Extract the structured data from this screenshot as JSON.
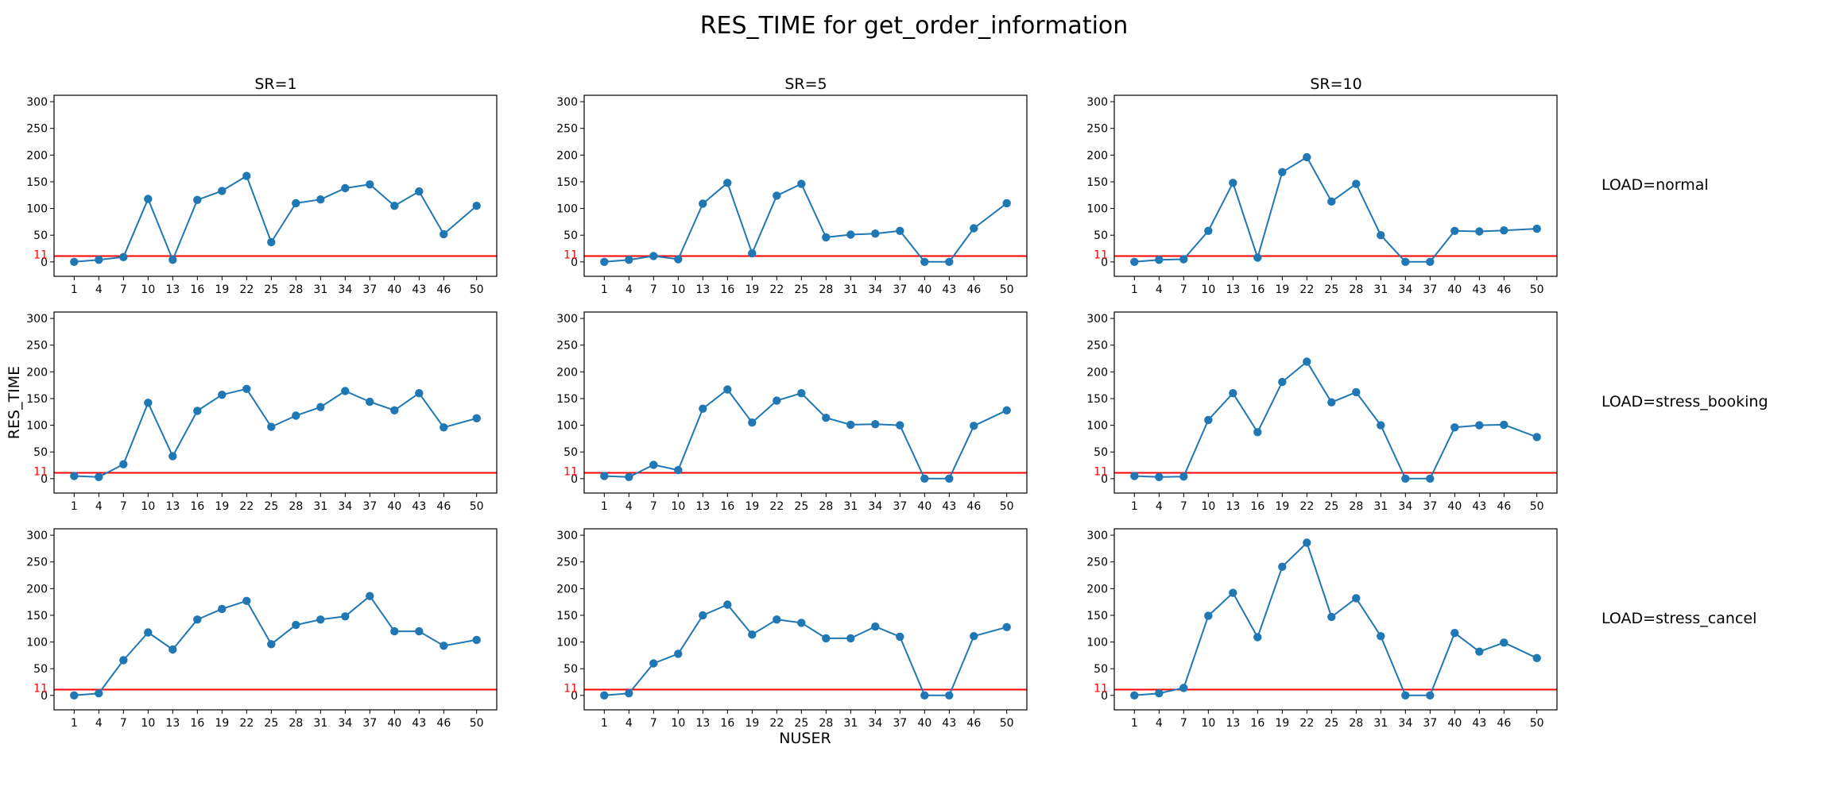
{
  "title": "RES_TIME for get_order_information",
  "xlabel": "NUSER",
  "ylabel": "RES_TIME",
  "col_titles": [
    "SR=1",
    "SR=5",
    "SR=10"
  ],
  "row_titles": [
    "LOAD=normal",
    "LOAD=stress_booking",
    "LOAD=stress_cancel"
  ],
  "threshold": {
    "value": 11,
    "label": "11",
    "color": "#ff0000"
  },
  "series_color": "#1f77b4",
  "chart_data": [
    {
      "type": "line",
      "row": "LOAD=normal",
      "col": "SR=1",
      "x": [
        1,
        4,
        7,
        10,
        13,
        16,
        19,
        22,
        25,
        28,
        31,
        34,
        37,
        40,
        43,
        46,
        50
      ],
      "y": [
        0,
        4,
        9,
        118,
        4,
        116,
        133,
        161,
        37,
        110,
        117,
        138,
        145,
        105,
        132,
        52,
        105
      ],
      "xticks": [
        1,
        4,
        7,
        10,
        13,
        16,
        19,
        22,
        25,
        28,
        31,
        34,
        37,
        40,
        43,
        46,
        50
      ],
      "yticks": [
        0,
        50,
        100,
        150,
        200,
        250,
        300
      ],
      "xlim": [
        -1.45,
        52.45
      ],
      "ylim": [
        -27,
        312
      ],
      "grid": false
    },
    {
      "type": "line",
      "row": "LOAD=normal",
      "col": "SR=5",
      "x": [
        1,
        4,
        7,
        10,
        13,
        16,
        19,
        22,
        25,
        28,
        31,
        34,
        37,
        40,
        43,
        46,
        50
      ],
      "y": [
        0,
        4,
        11,
        5,
        109,
        148,
        16,
        124,
        146,
        46,
        51,
        53,
        58,
        0,
        0,
        63,
        110
      ],
      "xticks": [
        1,
        4,
        7,
        10,
        13,
        16,
        19,
        22,
        25,
        28,
        31,
        34,
        37,
        40,
        43,
        46,
        50
      ],
      "yticks": [
        0,
        50,
        100,
        150,
        200,
        250,
        300
      ],
      "xlim": [
        -1.45,
        52.45
      ],
      "ylim": [
        -27,
        312
      ],
      "grid": false
    },
    {
      "type": "line",
      "row": "LOAD=normal",
      "col": "SR=10",
      "x": [
        1,
        4,
        7,
        10,
        13,
        16,
        19,
        22,
        25,
        28,
        31,
        34,
        37,
        40,
        43,
        46,
        50
      ],
      "y": [
        0,
        4,
        5,
        58,
        148,
        8,
        168,
        196,
        113,
        146,
        50,
        0,
        0,
        58,
        57,
        59,
        62
      ],
      "xticks": [
        1,
        4,
        7,
        10,
        13,
        16,
        19,
        22,
        25,
        28,
        31,
        34,
        37,
        40,
        43,
        46,
        50
      ],
      "yticks": [
        0,
        50,
        100,
        150,
        200,
        250,
        300
      ],
      "xlim": [
        -1.45,
        52.45
      ],
      "ylim": [
        -27,
        312
      ],
      "grid": false
    },
    {
      "type": "line",
      "row": "LOAD=stress_booking",
      "col": "SR=1",
      "x": [
        1,
        4,
        7,
        10,
        13,
        16,
        19,
        22,
        25,
        28,
        31,
        34,
        37,
        40,
        43,
        46,
        50
      ],
      "y": [
        5,
        3,
        27,
        142,
        42,
        127,
        157,
        168,
        97,
        118,
        134,
        164,
        144,
        128,
        160,
        96,
        113
      ],
      "xticks": [
        1,
        4,
        7,
        10,
        13,
        16,
        19,
        22,
        25,
        28,
        31,
        34,
        37,
        40,
        43,
        46,
        50
      ],
      "yticks": [
        0,
        50,
        100,
        150,
        200,
        250,
        300
      ],
      "xlim": [
        -1.45,
        52.45
      ],
      "ylim": [
        -27,
        312
      ],
      "grid": false
    },
    {
      "type": "line",
      "row": "LOAD=stress_booking",
      "col": "SR=5",
      "x": [
        1,
        4,
        7,
        10,
        13,
        16,
        19,
        22,
        25,
        28,
        31,
        34,
        37,
        40,
        43,
        46,
        50
      ],
      "y": [
        5,
        3,
        26,
        16,
        131,
        167,
        105,
        146,
        160,
        114,
        101,
        102,
        100,
        0,
        0,
        99,
        128
      ],
      "xticks": [
        1,
        4,
        7,
        10,
        13,
        16,
        19,
        22,
        25,
        28,
        31,
        34,
        37,
        40,
        43,
        46,
        50
      ],
      "yticks": [
        0,
        50,
        100,
        150,
        200,
        250,
        300
      ],
      "xlim": [
        -1.45,
        52.45
      ],
      "ylim": [
        -27,
        312
      ],
      "grid": false
    },
    {
      "type": "line",
      "row": "LOAD=stress_booking",
      "col": "SR=10",
      "x": [
        1,
        4,
        7,
        10,
        13,
        16,
        19,
        22,
        25,
        28,
        31,
        34,
        37,
        40,
        43,
        46,
        50
      ],
      "y": [
        5,
        3,
        4,
        110,
        160,
        87,
        181,
        219,
        143,
        162,
        100,
        0,
        0,
        96,
        100,
        101,
        78
      ],
      "xticks": [
        1,
        4,
        7,
        10,
        13,
        16,
        19,
        22,
        25,
        28,
        31,
        34,
        37,
        40,
        43,
        46,
        50
      ],
      "yticks": [
        0,
        50,
        100,
        150,
        200,
        250,
        300
      ],
      "xlim": [
        -1.45,
        52.45
      ],
      "ylim": [
        -27,
        312
      ],
      "grid": false
    },
    {
      "type": "line",
      "row": "LOAD=stress_cancel",
      "col": "SR=1",
      "x": [
        1,
        4,
        7,
        10,
        13,
        16,
        19,
        22,
        25,
        28,
        31,
        34,
        37,
        40,
        43,
        46,
        50
      ],
      "y": [
        0,
        4,
        66,
        118,
        86,
        142,
        162,
        177,
        96,
        132,
        142,
        148,
        186,
        120,
        120,
        93,
        104
      ],
      "xticks": [
        1,
        4,
        7,
        10,
        13,
        16,
        19,
        22,
        25,
        28,
        31,
        34,
        37,
        40,
        43,
        46,
        50
      ],
      "yticks": [
        0,
        50,
        100,
        150,
        200,
        250,
        300
      ],
      "xlim": [
        -1.45,
        52.45
      ],
      "ylim": [
        -27,
        312
      ],
      "grid": false
    },
    {
      "type": "line",
      "row": "LOAD=stress_cancel",
      "col": "SR=5",
      "x": [
        1,
        4,
        7,
        10,
        13,
        16,
        19,
        22,
        25,
        28,
        31,
        34,
        37,
        40,
        43,
        46,
        50
      ],
      "y": [
        0,
        4,
        60,
        78,
        150,
        170,
        114,
        142,
        136,
        107,
        107,
        129,
        110,
        0,
        0,
        111,
        128
      ],
      "xticks": [
        1,
        4,
        7,
        10,
        13,
        16,
        19,
        22,
        25,
        28,
        31,
        34,
        37,
        40,
        43,
        46,
        50
      ],
      "yticks": [
        0,
        50,
        100,
        150,
        200,
        250,
        300
      ],
      "xlim": [
        -1.45,
        52.45
      ],
      "ylim": [
        -27,
        312
      ],
      "grid": false
    },
    {
      "type": "line",
      "row": "LOAD=stress_cancel",
      "col": "SR=10",
      "x": [
        1,
        4,
        7,
        10,
        13,
        16,
        19,
        22,
        25,
        28,
        31,
        34,
        37,
        40,
        43,
        46,
        50
      ],
      "y": [
        0,
        4,
        14,
        149,
        192,
        109,
        241,
        286,
        147,
        182,
        111,
        0,
        0,
        117,
        82,
        99,
        70
      ],
      "xticks": [
        1,
        4,
        7,
        10,
        13,
        16,
        19,
        22,
        25,
        28,
        31,
        34,
        37,
        40,
        43,
        46,
        50
      ],
      "yticks": [
        0,
        50,
        100,
        150,
        200,
        250,
        300
      ],
      "xlim": [
        -1.45,
        52.45
      ],
      "ylim": [
        -27,
        312
      ],
      "grid": false
    }
  ]
}
